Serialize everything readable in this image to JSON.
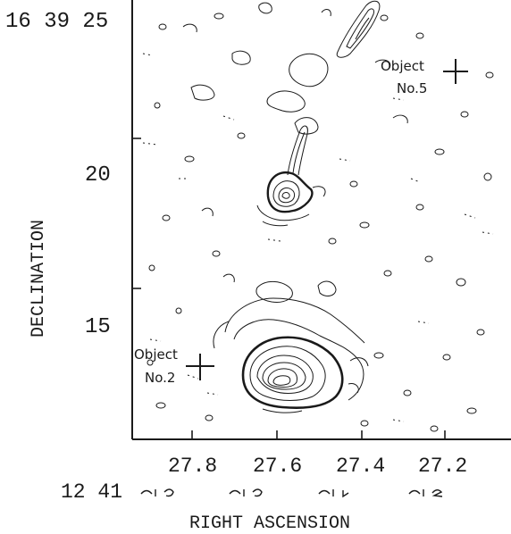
{
  "figure": {
    "ylabel": "DECLINATION",
    "xlabel": "RIGHT ASCENSION",
    "dec_prefix": "16 39 25",
    "dec_ticks": [
      "20",
      "15"
    ],
    "ra_prefix": "12 41",
    "ra_ticks": [
      "27.8",
      "27.6",
      "27.4",
      "27.2"
    ],
    "object5": {
      "line1": "Object",
      "line2": "No.5"
    },
    "object2": {
      "line1": "Object",
      "line2": "No.2"
    }
  },
  "colors": {
    "ink": "#1a1a1a",
    "background": "#ffffff"
  }
}
